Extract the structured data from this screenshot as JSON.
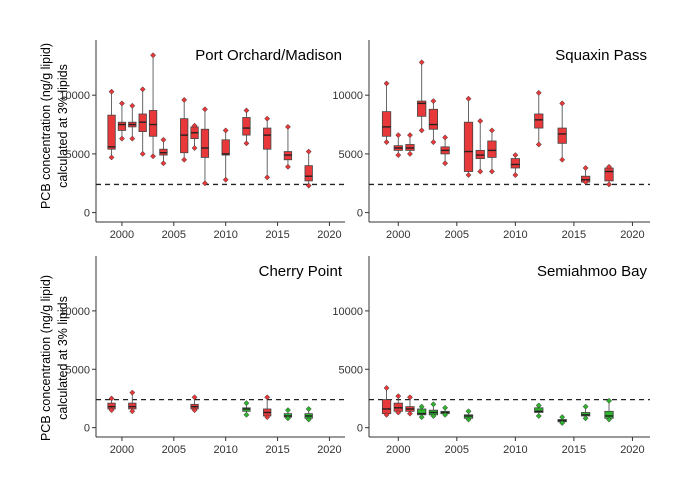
{
  "ylabel_lines": [
    "PCB concentration (ng/g lipid)",
    "calculated at 3% lipids"
  ],
  "colors": {
    "red": "#e8383a",
    "green": "#2db32d"
  },
  "chart_data": [
    {
      "type": "boxplot",
      "title": "Port Orchard/Madison",
      "xlim": [
        1997.5,
        2021.5
      ],
      "ylim": [
        -800,
        14700
      ],
      "xticks": [
        2000,
        2005,
        2010,
        2015,
        2020
      ],
      "yticks": [
        0,
        5000,
        10000
      ],
      "yticklabels": [
        "0",
        "5000",
        "10000"
      ],
      "threshold": 2400,
      "boxes": [
        {
          "x": 1999,
          "min": 4700,
          "q1": 5400,
          "median": 5600,
          "q3": 8300,
          "max": 10300,
          "color": "red"
        },
        {
          "x": 2000,
          "min": 6300,
          "q1": 7000,
          "median": 7500,
          "q3": 7700,
          "max": 9300,
          "color": "red"
        },
        {
          "x": 2001,
          "min": 6300,
          "q1": 7300,
          "median": 7500,
          "q3": 7700,
          "max": 9100,
          "color": "red"
        },
        {
          "x": 2002,
          "min": 5000,
          "q1": 6900,
          "median": 7700,
          "q3": 8400,
          "max": 10500,
          "color": "red"
        },
        {
          "x": 2003,
          "min": 4800,
          "q1": 6500,
          "median": 7500,
          "q3": 8700,
          "max": 13400,
          "color": "red"
        },
        {
          "x": 2004,
          "min": 4200,
          "q1": 4900,
          "median": 5100,
          "q3": 5400,
          "max": 6200,
          "color": "red"
        },
        {
          "x": 2006,
          "min": 4500,
          "q1": 5100,
          "median": 6600,
          "q3": 8000,
          "max": 9600,
          "color": "red"
        },
        {
          "x": 2007,
          "min": 5500,
          "q1": 6300,
          "median": 6800,
          "q3": 7300,
          "max": 7400,
          "color": "red"
        },
        {
          "x": 2008,
          "min": 2500,
          "q1": 4700,
          "median": 5500,
          "q3": 7100,
          "max": 8800,
          "color": "red"
        },
        {
          "x": 2010,
          "min": 2800,
          "q1": 4900,
          "median": 5000,
          "q3": 6200,
          "max": 7000,
          "color": "red"
        },
        {
          "x": 2012,
          "min": 5900,
          "q1": 6600,
          "median": 7200,
          "q3": 8100,
          "max": 8700,
          "color": "red"
        },
        {
          "x": 2014,
          "min": 3000,
          "q1": 5400,
          "median": 6600,
          "q3": 7200,
          "max": 8000,
          "color": "red"
        },
        {
          "x": 2016,
          "min": 3900,
          "q1": 4500,
          "median": 4900,
          "q3": 5200,
          "max": 7300,
          "color": "red"
        },
        {
          "x": 2018,
          "min": 2300,
          "q1": 2700,
          "median": 3100,
          "q3": 4000,
          "max": 5200,
          "color": "red"
        }
      ]
    },
    {
      "type": "boxplot",
      "title": "Squaxin Pass",
      "xlim": [
        1997.5,
        2021.5
      ],
      "ylim": [
        -800,
        14700
      ],
      "xticks": [
        2000,
        2005,
        2010,
        2015,
        2020
      ],
      "yticks": [
        0,
        5000,
        10000
      ],
      "yticklabels": [
        "0",
        "5000",
        "10000"
      ],
      "threshold": 2400,
      "boxes": [
        {
          "x": 1999,
          "min": 6000,
          "q1": 6500,
          "median": 7300,
          "q3": 8600,
          "max": 11000,
          "color": "red"
        },
        {
          "x": 2000,
          "min": 4900,
          "q1": 5300,
          "median": 5500,
          "q3": 5700,
          "max": 6600,
          "color": "red"
        },
        {
          "x": 2001,
          "min": 5000,
          "q1": 5300,
          "median": 5500,
          "q3": 5800,
          "max": 6600,
          "color": "red"
        },
        {
          "x": 2002,
          "min": 7000,
          "q1": 8200,
          "median": 9300,
          "q3": 9500,
          "max": 12800,
          "color": "red"
        },
        {
          "x": 2003,
          "min": 6000,
          "q1": 7100,
          "median": 7500,
          "q3": 8800,
          "max": 9500,
          "color": "red"
        },
        {
          "x": 2004,
          "min": 4200,
          "q1": 5000,
          "median": 5300,
          "q3": 5600,
          "max": 6400,
          "color": "red"
        },
        {
          "x": 2006,
          "min": 3200,
          "q1": 3500,
          "median": 5200,
          "q3": 7700,
          "max": 9700,
          "color": "red"
        },
        {
          "x": 2007,
          "min": 3500,
          "q1": 4600,
          "median": 4900,
          "q3": 5300,
          "max": 7800,
          "color": "red"
        },
        {
          "x": 2008,
          "min": 3500,
          "q1": 4700,
          "median": 5300,
          "q3": 6100,
          "max": 7000,
          "color": "red"
        },
        {
          "x": 2010,
          "min": 3200,
          "q1": 3800,
          "median": 4100,
          "q3": 4600,
          "max": 4900,
          "color": "red"
        },
        {
          "x": 2012,
          "min": 5800,
          "q1": 7200,
          "median": 7900,
          "q3": 8400,
          "max": 10200,
          "color": "red"
        },
        {
          "x": 2014,
          "min": 4500,
          "q1": 5900,
          "median": 6700,
          "q3": 7200,
          "max": 9300,
          "color": "red"
        },
        {
          "x": 2016,
          "min": 2600,
          "q1": 2600,
          "median": 2800,
          "q3": 3100,
          "max": 3800,
          "color": "red"
        },
        {
          "x": 2018,
          "min": 2400,
          "q1": 2700,
          "median": 3500,
          "q3": 3800,
          "max": 3900,
          "color": "red"
        }
      ]
    },
    {
      "type": "boxplot",
      "title": "Cherry Point",
      "xlim": [
        1997.5,
        2021.5
      ],
      "ylim": [
        -800,
        14700
      ],
      "xticks": [
        2000,
        2005,
        2010,
        2015,
        2020
      ],
      "yticks": [
        0,
        5000,
        10000
      ],
      "yticklabels": [
        "0",
        "5000",
        "10000"
      ],
      "threshold": 2400,
      "boxes": [
        {
          "x": 1999,
          "min": 1500,
          "q1": 1600,
          "median": 1800,
          "q3": 2100,
          "max": 2500,
          "color": "red"
        },
        {
          "x": 2001,
          "min": 1400,
          "q1": 1600,
          "median": 1800,
          "q3": 2100,
          "max": 3000,
          "color": "red"
        },
        {
          "x": 2007,
          "min": 1500,
          "q1": 1600,
          "median": 1800,
          "q3": 2000,
          "max": 2600,
          "color": "red"
        },
        {
          "x": 2012,
          "min": 1100,
          "q1": 1400,
          "median": 1600,
          "q3": 1700,
          "max": 2100,
          "color": "green"
        },
        {
          "x": 2014,
          "min": 900,
          "q1": 1000,
          "median": 1300,
          "q3": 1600,
          "max": 2600,
          "color": "red"
        },
        {
          "x": 2016,
          "min": 800,
          "q1": 900,
          "median": 1000,
          "q3": 1200,
          "max": 1500,
          "color": "green"
        },
        {
          "x": 2018,
          "min": 700,
          "q1": 800,
          "median": 1000,
          "q3": 1200,
          "max": 1600,
          "color": "green"
        }
      ]
    },
    {
      "type": "boxplot",
      "title": "Semiahmoo Bay",
      "xlim": [
        1997.5,
        2021.5
      ],
      "ylim": [
        -800,
        14700
      ],
      "xticks": [
        2000,
        2005,
        2010,
        2015,
        2020
      ],
      "yticks": [
        0,
        5000,
        10000
      ],
      "yticklabels": [
        "0",
        "5000",
        "10000"
      ],
      "threshold": 2400,
      "boxes": [
        {
          "x": 1999,
          "min": 1100,
          "q1": 1200,
          "median": 1600,
          "q3": 2400,
          "max": 3400,
          "color": "red"
        },
        {
          "x": 2000,
          "min": 1300,
          "q1": 1400,
          "median": 1700,
          "q3": 2100,
          "max": 2700,
          "color": "red"
        },
        {
          "x": 2001,
          "min": 1200,
          "q1": 1400,
          "median": 1600,
          "q3": 1800,
          "max": 2600,
          "color": "red"
        },
        {
          "x": 2002,
          "min": 900,
          "q1": 1100,
          "median": 1200,
          "q3": 1600,
          "max": 1800,
          "color": "green"
        },
        {
          "x": 2003,
          "min": 1000,
          "q1": 1100,
          "median": 1300,
          "q3": 1500,
          "max": 2000,
          "color": "green"
        },
        {
          "x": 2004,
          "min": 1100,
          "q1": 1200,
          "median": 1300,
          "q3": 1400,
          "max": 1700,
          "color": "green"
        },
        {
          "x": 2006,
          "min": 700,
          "q1": 800,
          "median": 1000,
          "q3": 1100,
          "max": 1400,
          "color": "green"
        },
        {
          "x": 2012,
          "min": 1000,
          "q1": 1300,
          "median": 1400,
          "q3": 1700,
          "max": 1900,
          "color": "green"
        },
        {
          "x": 2014,
          "min": 400,
          "q1": 500,
          "median": 600,
          "q3": 700,
          "max": 900,
          "color": "green"
        },
        {
          "x": 2016,
          "min": 800,
          "q1": 1000,
          "median": 1100,
          "q3": 1300,
          "max": 1800,
          "color": "green"
        },
        {
          "x": 2018,
          "min": 700,
          "q1": 800,
          "median": 1000,
          "q3": 1400,
          "max": 2300,
          "color": "green"
        }
      ]
    }
  ]
}
